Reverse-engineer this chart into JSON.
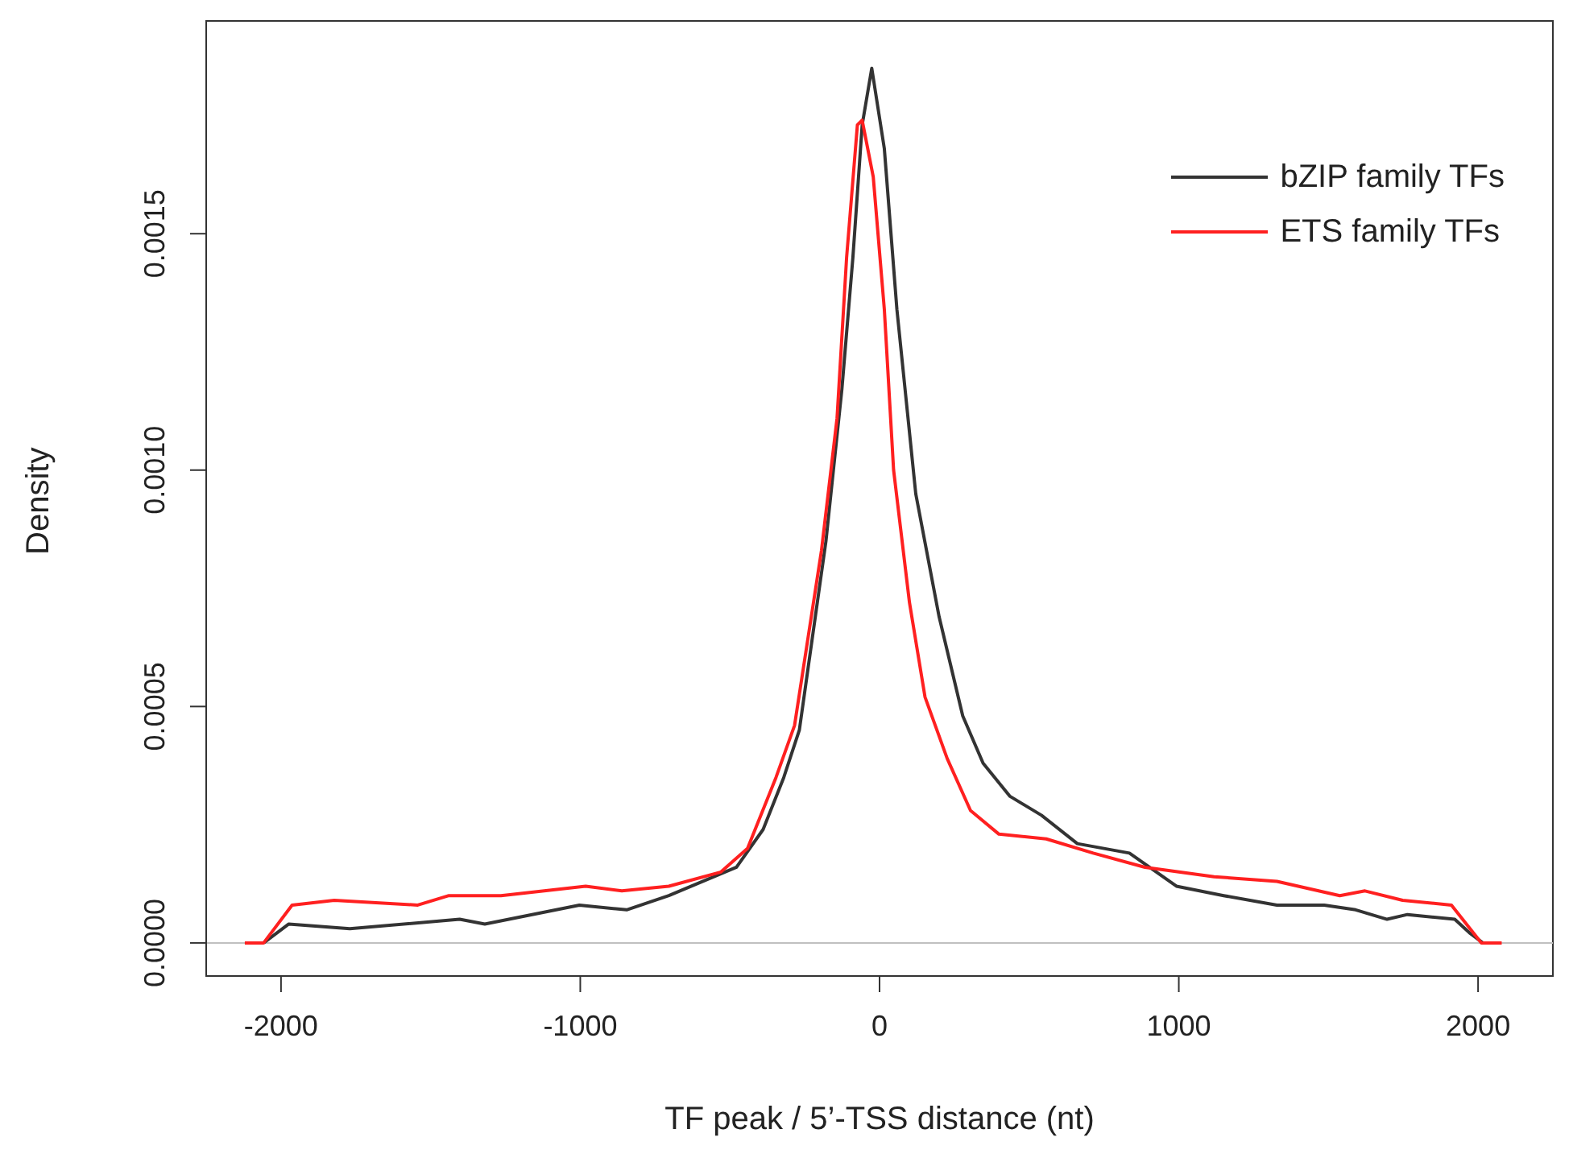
{
  "chart_data": {
    "type": "line",
    "xlabel": "TF peak / 5’-TSS distance (nt)",
    "ylabel": "Density",
    "xlim": [
      -2250,
      2250
    ],
    "xticks": [
      -2000,
      -1000,
      0,
      1000,
      2000
    ],
    "ylim": [
      -7e-05,
      0.00195
    ],
    "yticks": [
      {
        "value": 0,
        "label": "0.0000"
      },
      {
        "value": 0.0005,
        "label": "0.0005"
      },
      {
        "value": 0.001,
        "label": "0.0010"
      },
      {
        "value": 0.0015,
        "label": "0.0015"
      }
    ],
    "grid": false,
    "legend": "top right",
    "marker": "none",
    "line_style": "solid",
    "ref_lines": [
      {
        "axis": "y",
        "value": 0,
        "color": "#c0c0c0"
      }
    ],
    "series": [
      {
        "name": "bZIP family TFs",
        "color": "#333333",
        "x": [
          -2058,
          -1974,
          -1770,
          -1403,
          -1319,
          -1003,
          -845,
          -704,
          -478,
          -389,
          -320,
          -268,
          -179,
          -126,
          -89,
          -58,
          -26,
          16,
          58,
          121,
          199,
          278,
          346,
          436,
          541,
          661,
          835,
          992,
          1150,
          1328,
          1486,
          1591,
          1696,
          1764,
          1922,
          1974,
          2016
        ],
        "values": [
          0,
          4e-05,
          3e-05,
          5e-05,
          4e-05,
          8e-05,
          7e-05,
          0.0001,
          0.00016,
          0.00024,
          0.00035,
          0.00045,
          0.00085,
          0.00117,
          0.00145,
          0.00173,
          0.00185,
          0.00168,
          0.00134,
          0.00095,
          0.00069,
          0.00048,
          0.00038,
          0.00031,
          0.00027,
          0.00021,
          0.00019,
          0.00012,
          0.0001,
          8e-05,
          8e-05,
          7e-05,
          5e-05,
          6e-05,
          5e-05,
          2e-05,
          0
        ]
      },
      {
        "name": "ETS family TFs",
        "color": "#ff2020",
        "x": [
          -2121,
          -2058,
          -1963,
          -1822,
          -1543,
          -1439,
          -1265,
          -982,
          -861,
          -704,
          -530,
          -441,
          -346,
          -284,
          -194,
          -142,
          -110,
          -74,
          -58,
          -21,
          16,
          47,
          100,
          152,
          226,
          304,
          399,
          557,
          714,
          887,
          1118,
          1328,
          1538,
          1622,
          1748,
          1911,
          2011,
          2079
        ],
        "values": [
          0,
          0,
          8e-05,
          9e-05,
          8e-05,
          0.0001,
          0.0001,
          0.00012,
          0.00011,
          0.00012,
          0.00015,
          0.0002,
          0.00035,
          0.00046,
          0.00083,
          0.00111,
          0.00145,
          0.00173,
          0.00174,
          0.00162,
          0.00134,
          0.001,
          0.00072,
          0.00052,
          0.00039,
          0.00028,
          0.00023,
          0.00022,
          0.00019,
          0.00016,
          0.00014,
          0.00013,
          0.0001,
          0.00011,
          9e-05,
          8e-05,
          0,
          0
        ]
      }
    ]
  }
}
